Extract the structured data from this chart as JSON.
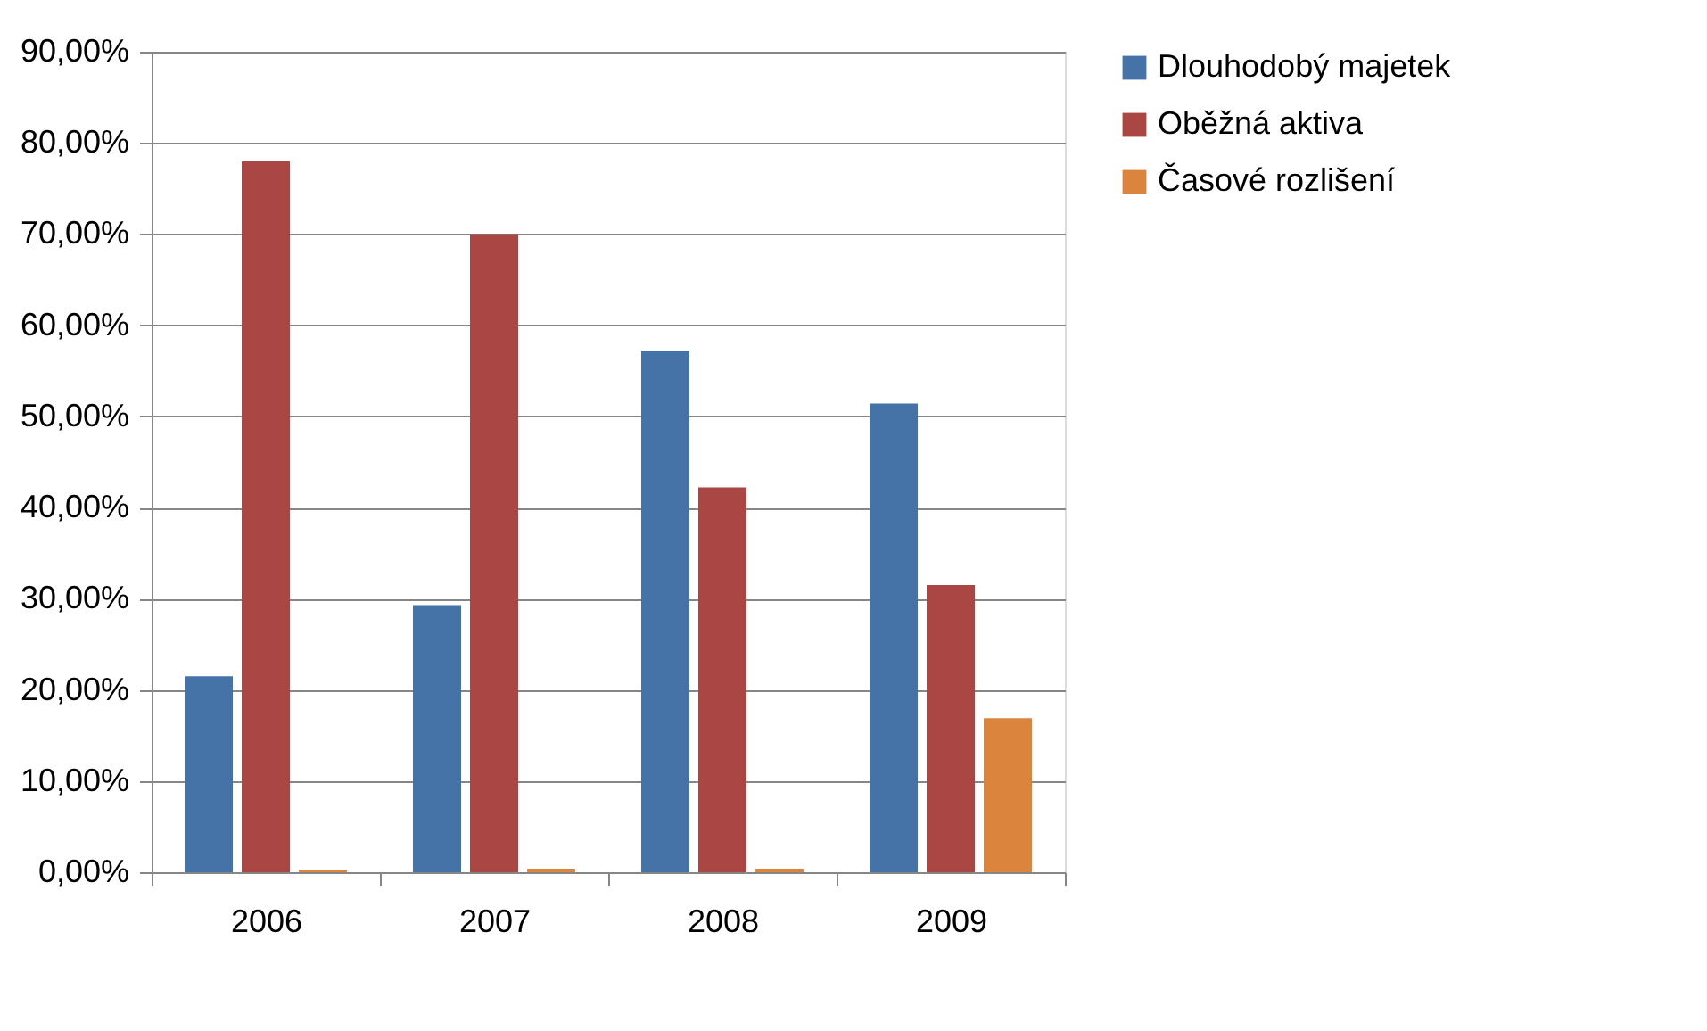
{
  "chart_data": {
    "type": "bar",
    "categories": [
      "2006",
      "2007",
      "2008",
      "2009"
    ],
    "series": [
      {
        "name": "Dlouhodobý majetek",
        "color": "#4572a7",
        "values": [
          21.5,
          29.3,
          57.2,
          51.4
        ]
      },
      {
        "name": "Oběžná aktiva",
        "color": "#aa4643",
        "values": [
          78.0,
          70.0,
          42.2,
          31.5
        ]
      },
      {
        "name": "Časové rozlišení",
        "color": "#db843d",
        "values": [
          0.2,
          0.4,
          0.4,
          16.9
        ]
      }
    ],
    "ylim": [
      0,
      90
    ],
    "yticks": [
      {
        "value": 0,
        "label": "0,00%"
      },
      {
        "value": 10,
        "label": "10,00%"
      },
      {
        "value": 20,
        "label": "20,00%"
      },
      {
        "value": 30,
        "label": "30,00%"
      },
      {
        "value": 40,
        "label": "40,00%"
      },
      {
        "value": 50,
        "label": "50,00%"
      },
      {
        "value": 60,
        "label": "60,00%"
      },
      {
        "value": 70,
        "label": "70,00%"
      },
      {
        "value": 80,
        "label": "80,00%"
      },
      {
        "value": 90,
        "label": "90,00%"
      }
    ],
    "grid": "y",
    "legend": "right"
  }
}
